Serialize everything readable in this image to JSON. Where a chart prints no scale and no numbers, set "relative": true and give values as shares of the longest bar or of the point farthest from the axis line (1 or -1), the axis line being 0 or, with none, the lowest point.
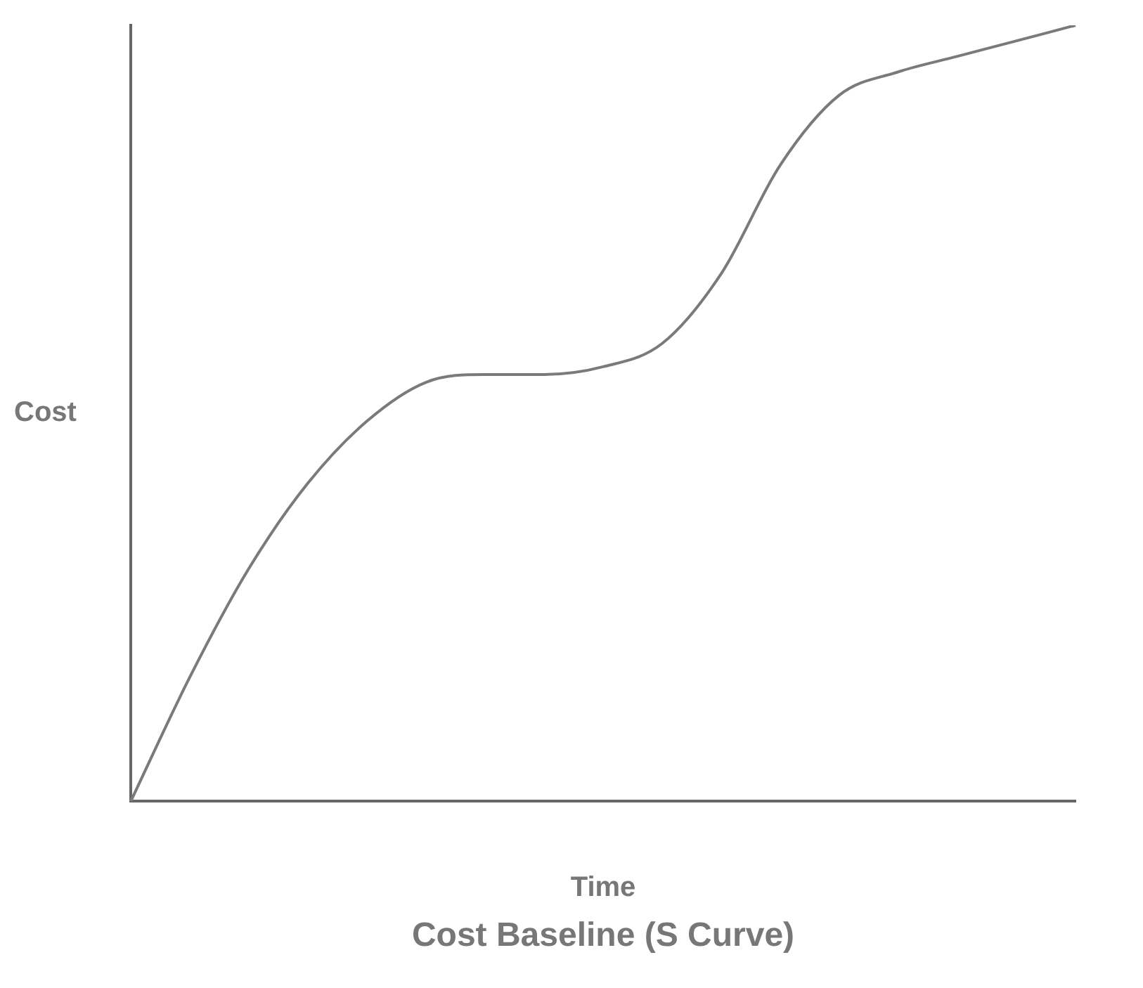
{
  "chart_data": {
    "type": "line",
    "title": "Cost Baseline (S Curve)",
    "xlabel": "Time",
    "ylabel": "Cost",
    "relative": true,
    "tick_labels": false,
    "grid": false,
    "legend": false,
    "marker": "none",
    "line_style": "solid",
    "categories": [
      null,
      null,
      null,
      null,
      null,
      null,
      null,
      null,
      null,
      null,
      null,
      null,
      null,
      null,
      null,
      null,
      null
    ],
    "series": [
      {
        "color": "#7a7a7a",
        "values": [
          0,
          0.16,
          0.3,
          0.41,
          0.49,
          0.54,
          0.55,
          0.55,
          0.56,
          0.59,
          0.68,
          0.82,
          0.91,
          0.94,
          0.96,
          0.98,
          1
        ]
      }
    ]
  }
}
